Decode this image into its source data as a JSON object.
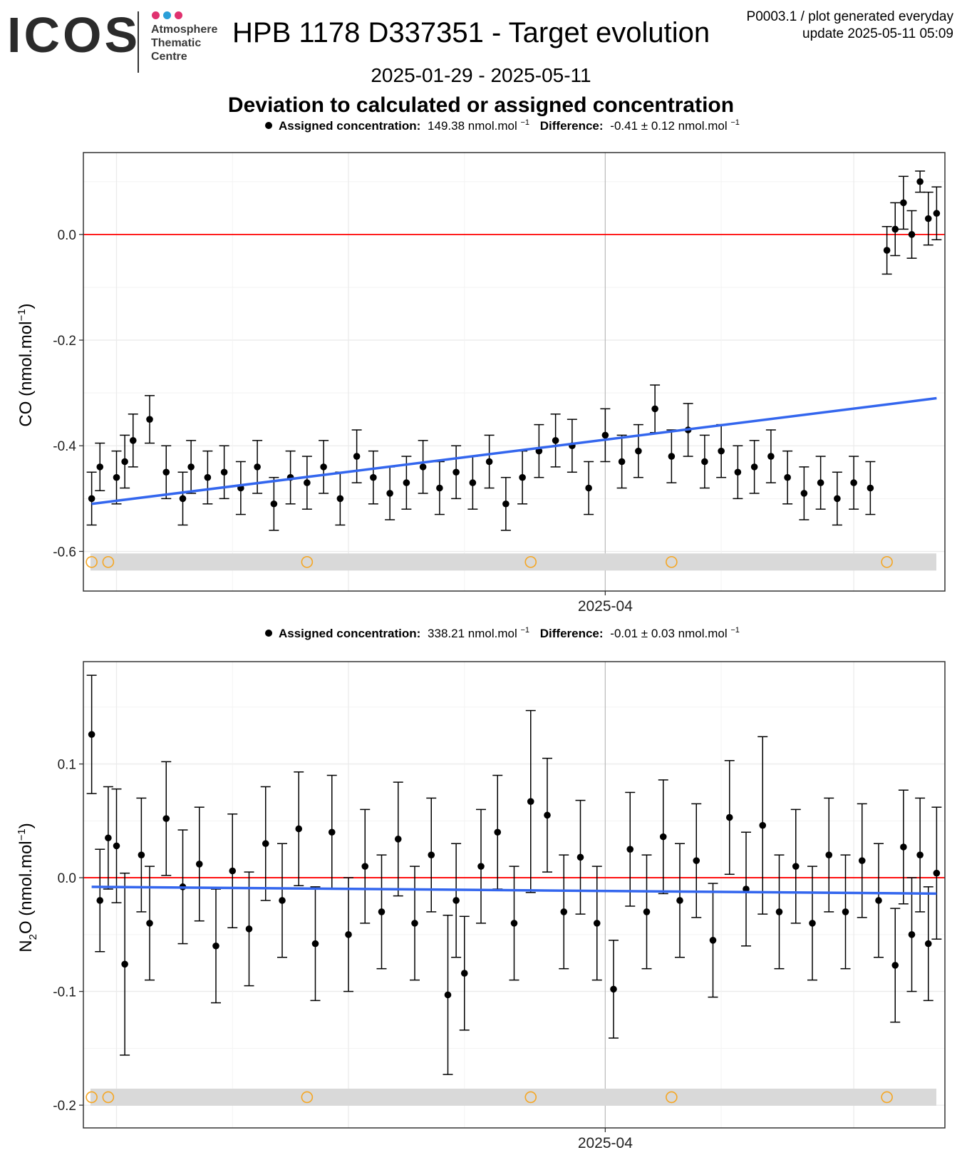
{
  "header": {
    "logo_text": "ICOS",
    "logo_centre": [
      "Atmosphere",
      "Thematic",
      "Centre"
    ],
    "logo_dot_colors": [
      "#e0316f",
      "#2a9fd8",
      "#e0316f"
    ],
    "title": "HPB 1178 D337351 - Target evolution",
    "meta_line1": "P0003.1 / plot generated everyday",
    "meta_line2": "update  2025-05-11 05:09",
    "date_range": "2025-01-29 - 2025-05-11",
    "subtitle": "Deviation to calculated or assigned concentration"
  },
  "colors": {
    "points": "#000000",
    "zero_line": "#ff0000",
    "trend_line": "#3366ee",
    "flag_circle": "#f5a623",
    "flag_band": "#d9d9d9",
    "grid": "#ebebeb"
  },
  "chart_data": [
    {
      "type": "scatter",
      "panel": "co",
      "legend_label": "Assigned concentration:",
      "assigned_value": "149.38 nmol.mol",
      "difference_label": "Difference:",
      "difference_value": "-0.41 ± 0.12 nmol.mol",
      "unit_sup": "−1",
      "ylabel": "CO (nmol.mol",
      "ylabel_sup": "−1",
      "ylabel_end": ")",
      "ylim": [
        -0.675,
        0.155
      ],
      "yticks": [
        0.0,
        -0.2,
        -0.4,
        -0.6
      ],
      "ytick_labels": [
        "0.0",
        "-0.2",
        "-0.4",
        "-0.6"
      ],
      "xlim": [
        "2025-01-28",
        "2025-05-12"
      ],
      "xticks": [
        "2025-04-01"
      ],
      "xtick_labels": [
        "2025-04"
      ],
      "reference_line": 0.0,
      "trend": {
        "x": [
          "2025-01-29",
          "2025-05-11"
        ],
        "y": [
          -0.51,
          -0.31
        ]
      },
      "flag_y": -0.62,
      "flag_dates": [
        "2025-01-29",
        "2025-01-31",
        "2025-02-24",
        "2025-03-23",
        "2025-04-09",
        "2025-05-05"
      ],
      "points": [
        {
          "x": "2025-01-29",
          "y": -0.5,
          "err": 0.05
        },
        {
          "x": "2025-01-30",
          "y": -0.44,
          "err": 0.045
        },
        {
          "x": "2025-02-01",
          "y": -0.46,
          "err": 0.05
        },
        {
          "x": "2025-02-02",
          "y": -0.43,
          "err": 0.05
        },
        {
          "x": "2025-02-03",
          "y": -0.39,
          "err": 0.05
        },
        {
          "x": "2025-02-05",
          "y": -0.35,
          "err": 0.045
        },
        {
          "x": "2025-02-07",
          "y": -0.45,
          "err": 0.05
        },
        {
          "x": "2025-02-09",
          "y": -0.5,
          "err": 0.05
        },
        {
          "x": "2025-02-10",
          "y": -0.44,
          "err": 0.05
        },
        {
          "x": "2025-02-12",
          "y": -0.46,
          "err": 0.05
        },
        {
          "x": "2025-02-14",
          "y": -0.45,
          "err": 0.05
        },
        {
          "x": "2025-02-16",
          "y": -0.48,
          "err": 0.05
        },
        {
          "x": "2025-02-18",
          "y": -0.44,
          "err": 0.05
        },
        {
          "x": "2025-02-20",
          "y": -0.51,
          "err": 0.05
        },
        {
          "x": "2025-02-22",
          "y": -0.46,
          "err": 0.05
        },
        {
          "x": "2025-02-24",
          "y": -0.47,
          "err": 0.05
        },
        {
          "x": "2025-02-26",
          "y": -0.44,
          "err": 0.05
        },
        {
          "x": "2025-02-28",
          "y": -0.5,
          "err": 0.05
        },
        {
          "x": "2025-03-02",
          "y": -0.42,
          "err": 0.05
        },
        {
          "x": "2025-03-04",
          "y": -0.46,
          "err": 0.05
        },
        {
          "x": "2025-03-06",
          "y": -0.49,
          "err": 0.05
        },
        {
          "x": "2025-03-08",
          "y": -0.47,
          "err": 0.05
        },
        {
          "x": "2025-03-10",
          "y": -0.44,
          "err": 0.05
        },
        {
          "x": "2025-03-12",
          "y": -0.48,
          "err": 0.05
        },
        {
          "x": "2025-03-14",
          "y": -0.45,
          "err": 0.05
        },
        {
          "x": "2025-03-16",
          "y": -0.47,
          "err": 0.05
        },
        {
          "x": "2025-03-18",
          "y": -0.43,
          "err": 0.05
        },
        {
          "x": "2025-03-20",
          "y": -0.51,
          "err": 0.05
        },
        {
          "x": "2025-03-22",
          "y": -0.46,
          "err": 0.05
        },
        {
          "x": "2025-03-24",
          "y": -0.41,
          "err": 0.05
        },
        {
          "x": "2025-03-26",
          "y": -0.39,
          "err": 0.05
        },
        {
          "x": "2025-03-28",
          "y": -0.4,
          "err": 0.05
        },
        {
          "x": "2025-03-30",
          "y": -0.48,
          "err": 0.05
        },
        {
          "x": "2025-04-01",
          "y": -0.38,
          "err": 0.05
        },
        {
          "x": "2025-04-03",
          "y": -0.43,
          "err": 0.05
        },
        {
          "x": "2025-04-05",
          "y": -0.41,
          "err": 0.05
        },
        {
          "x": "2025-04-07",
          "y": -0.33,
          "err": 0.045
        },
        {
          "x": "2025-04-09",
          "y": -0.42,
          "err": 0.05
        },
        {
          "x": "2025-04-11",
          "y": -0.37,
          "err": 0.05
        },
        {
          "x": "2025-04-13",
          "y": -0.43,
          "err": 0.05
        },
        {
          "x": "2025-04-15",
          "y": -0.41,
          "err": 0.05
        },
        {
          "x": "2025-04-17",
          "y": -0.45,
          "err": 0.05
        },
        {
          "x": "2025-04-19",
          "y": -0.44,
          "err": 0.05
        },
        {
          "x": "2025-04-21",
          "y": -0.42,
          "err": 0.05
        },
        {
          "x": "2025-04-23",
          "y": -0.46,
          "err": 0.05
        },
        {
          "x": "2025-04-25",
          "y": -0.49,
          "err": 0.05
        },
        {
          "x": "2025-04-27",
          "y": -0.47,
          "err": 0.05
        },
        {
          "x": "2025-04-29",
          "y": -0.5,
          "err": 0.05
        },
        {
          "x": "2025-05-01",
          "y": -0.47,
          "err": 0.05
        },
        {
          "x": "2025-05-03",
          "y": -0.48,
          "err": 0.05
        },
        {
          "x": "2025-05-05",
          "y": -0.03,
          "err": 0.045
        },
        {
          "x": "2025-05-06",
          "y": 0.01,
          "err": 0.05
        },
        {
          "x": "2025-05-07",
          "y": 0.06,
          "err": 0.05
        },
        {
          "x": "2025-05-08",
          "y": 0.0,
          "err": 0.045
        },
        {
          "x": "2025-05-09",
          "y": 0.1,
          "err": 0.02
        },
        {
          "x": "2025-05-10",
          "y": 0.03,
          "err": 0.05
        },
        {
          "x": "2025-05-11",
          "y": 0.04,
          "err": 0.05
        }
      ]
    },
    {
      "type": "scatter",
      "panel": "n2o",
      "legend_label": "Assigned concentration:",
      "assigned_value": "338.21 nmol.mol",
      "difference_label": "Difference:",
      "difference_value": "-0.01 ± 0.03 nmol.mol",
      "unit_sup": "−1",
      "ylabel": "N",
      "ylabel_sub": "2",
      "ylabel_mid": "O (nmol.mol",
      "ylabel_sup": "−1",
      "ylabel_end": ")",
      "ylim": [
        -0.22,
        0.19
      ],
      "yticks": [
        0.1,
        0.0,
        -0.1,
        -0.2
      ],
      "ytick_labels": [
        "0.1",
        "0.0",
        "-0.1",
        "-0.2"
      ],
      "xlim": [
        "2025-01-28",
        "2025-05-12"
      ],
      "xticks": [
        "2025-04-01"
      ],
      "xtick_labels": [
        "2025-04"
      ],
      "reference_line": 0.0,
      "trend": {
        "x": [
          "2025-01-29",
          "2025-05-11"
        ],
        "y": [
          -0.008,
          -0.014
        ]
      },
      "flag_y": -0.193,
      "flag_dates": [
        "2025-01-29",
        "2025-01-31",
        "2025-02-24",
        "2025-03-23",
        "2025-04-09",
        "2025-05-05"
      ],
      "points": [
        {
          "x": "2025-01-29",
          "y": 0.126,
          "err": 0.052
        },
        {
          "x": "2025-01-30",
          "y": -0.02,
          "err": 0.045
        },
        {
          "x": "2025-01-31",
          "y": 0.035,
          "err": 0.045
        },
        {
          "x": "2025-02-01",
          "y": 0.028,
          "err": 0.05
        },
        {
          "x": "2025-02-02",
          "y": -0.076,
          "err": 0.08
        },
        {
          "x": "2025-02-04",
          "y": 0.02,
          "err": 0.05
        },
        {
          "x": "2025-02-05",
          "y": -0.04,
          "err": 0.05
        },
        {
          "x": "2025-02-07",
          "y": 0.052,
          "err": 0.05
        },
        {
          "x": "2025-02-09",
          "y": -0.008,
          "err": 0.05
        },
        {
          "x": "2025-02-11",
          "y": 0.012,
          "err": 0.05
        },
        {
          "x": "2025-02-13",
          "y": -0.06,
          "err": 0.05
        },
        {
          "x": "2025-02-15",
          "y": 0.006,
          "err": 0.05
        },
        {
          "x": "2025-02-17",
          "y": -0.045,
          "err": 0.05
        },
        {
          "x": "2025-02-19",
          "y": 0.03,
          "err": 0.05
        },
        {
          "x": "2025-02-21",
          "y": -0.02,
          "err": 0.05
        },
        {
          "x": "2025-02-23",
          "y": 0.043,
          "err": 0.05
        },
        {
          "x": "2025-02-25",
          "y": -0.058,
          "err": 0.05
        },
        {
          "x": "2025-02-27",
          "y": 0.04,
          "err": 0.05
        },
        {
          "x": "2025-03-01",
          "y": -0.05,
          "err": 0.05
        },
        {
          "x": "2025-03-03",
          "y": 0.01,
          "err": 0.05
        },
        {
          "x": "2025-03-05",
          "y": -0.03,
          "err": 0.05
        },
        {
          "x": "2025-03-07",
          "y": 0.034,
          "err": 0.05
        },
        {
          "x": "2025-03-09",
          "y": -0.04,
          "err": 0.05
        },
        {
          "x": "2025-03-11",
          "y": 0.02,
          "err": 0.05
        },
        {
          "x": "2025-03-13",
          "y": -0.103,
          "err": 0.07
        },
        {
          "x": "2025-03-14",
          "y": -0.02,
          "err": 0.05
        },
        {
          "x": "2025-03-15",
          "y": -0.084,
          "err": 0.05
        },
        {
          "x": "2025-03-17",
          "y": 0.01,
          "err": 0.05
        },
        {
          "x": "2025-03-19",
          "y": 0.04,
          "err": 0.05
        },
        {
          "x": "2025-03-21",
          "y": -0.04,
          "err": 0.05
        },
        {
          "x": "2025-03-23",
          "y": 0.067,
          "err": 0.08
        },
        {
          "x": "2025-03-25",
          "y": 0.055,
          "err": 0.05
        },
        {
          "x": "2025-03-27",
          "y": -0.03,
          "err": 0.05
        },
        {
          "x": "2025-03-29",
          "y": 0.018,
          "err": 0.05
        },
        {
          "x": "2025-03-31",
          "y": -0.04,
          "err": 0.05
        },
        {
          "x": "2025-04-02",
          "y": -0.098,
          "err": 0.043
        },
        {
          "x": "2025-04-04",
          "y": 0.025,
          "err": 0.05
        },
        {
          "x": "2025-04-06",
          "y": -0.03,
          "err": 0.05
        },
        {
          "x": "2025-04-08",
          "y": 0.036,
          "err": 0.05
        },
        {
          "x": "2025-04-10",
          "y": -0.02,
          "err": 0.05
        },
        {
          "x": "2025-04-12",
          "y": 0.015,
          "err": 0.05
        },
        {
          "x": "2025-04-14",
          "y": -0.055,
          "err": 0.05
        },
        {
          "x": "2025-04-16",
          "y": 0.053,
          "err": 0.05
        },
        {
          "x": "2025-04-18",
          "y": -0.01,
          "err": 0.05
        },
        {
          "x": "2025-04-20",
          "y": 0.046,
          "err": 0.078
        },
        {
          "x": "2025-04-22",
          "y": -0.03,
          "err": 0.05
        },
        {
          "x": "2025-04-24",
          "y": 0.01,
          "err": 0.05
        },
        {
          "x": "2025-04-26",
          "y": -0.04,
          "err": 0.05
        },
        {
          "x": "2025-04-28",
          "y": 0.02,
          "err": 0.05
        },
        {
          "x": "2025-04-30",
          "y": -0.03,
          "err": 0.05
        },
        {
          "x": "2025-05-02",
          "y": 0.015,
          "err": 0.05
        },
        {
          "x": "2025-05-04",
          "y": -0.02,
          "err": 0.05
        },
        {
          "x": "2025-05-06",
          "y": -0.077,
          "err": 0.05
        },
        {
          "x": "2025-05-07",
          "y": 0.027,
          "err": 0.05
        },
        {
          "x": "2025-05-08",
          "y": -0.05,
          "err": 0.05
        },
        {
          "x": "2025-05-09",
          "y": 0.02,
          "err": 0.05
        },
        {
          "x": "2025-05-10",
          "y": -0.058,
          "err": 0.05
        },
        {
          "x": "2025-05-11",
          "y": 0.004,
          "err": 0.058
        }
      ]
    }
  ]
}
